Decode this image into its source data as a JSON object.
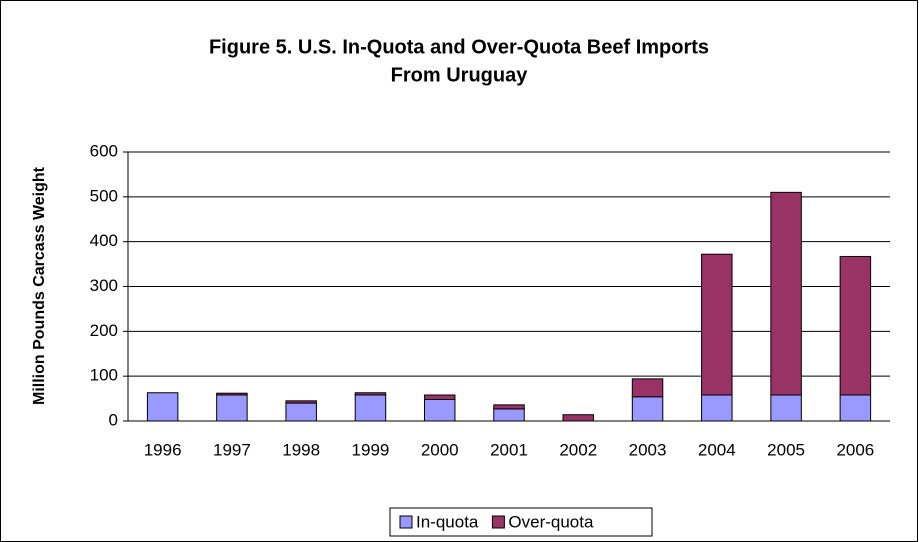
{
  "chart_data": {
    "type": "stacked_bar",
    "title": [
      "Figure 5. U.S. In-Quota and Over-Quota Beef Imports",
      "From Uruguay"
    ],
    "y_label": "Million Pounds Carcass Weight",
    "categories": [
      "1996",
      "1997",
      "1998",
      "1999",
      "2000",
      "2001",
      "2002",
      "2003",
      "2004",
      "2005",
      "2006"
    ],
    "series": [
      {
        "name": "In-quota",
        "color": "#9999ff",
        "values": [
          63,
          58,
          40,
          58,
          48,
          27,
          0,
          54,
          58,
          58,
          58
        ]
      },
      {
        "name": "Over-quota",
        "color": "#993366",
        "values": [
          0,
          4,
          5,
          5,
          10,
          9,
          14,
          40,
          314,
          452,
          309
        ]
      }
    ],
    "ylim": [
      0,
      600
    ],
    "yticks": [
      0,
      100,
      200,
      300,
      400,
      500,
      600
    ],
    "grid": true,
    "legend": "bottom"
  }
}
